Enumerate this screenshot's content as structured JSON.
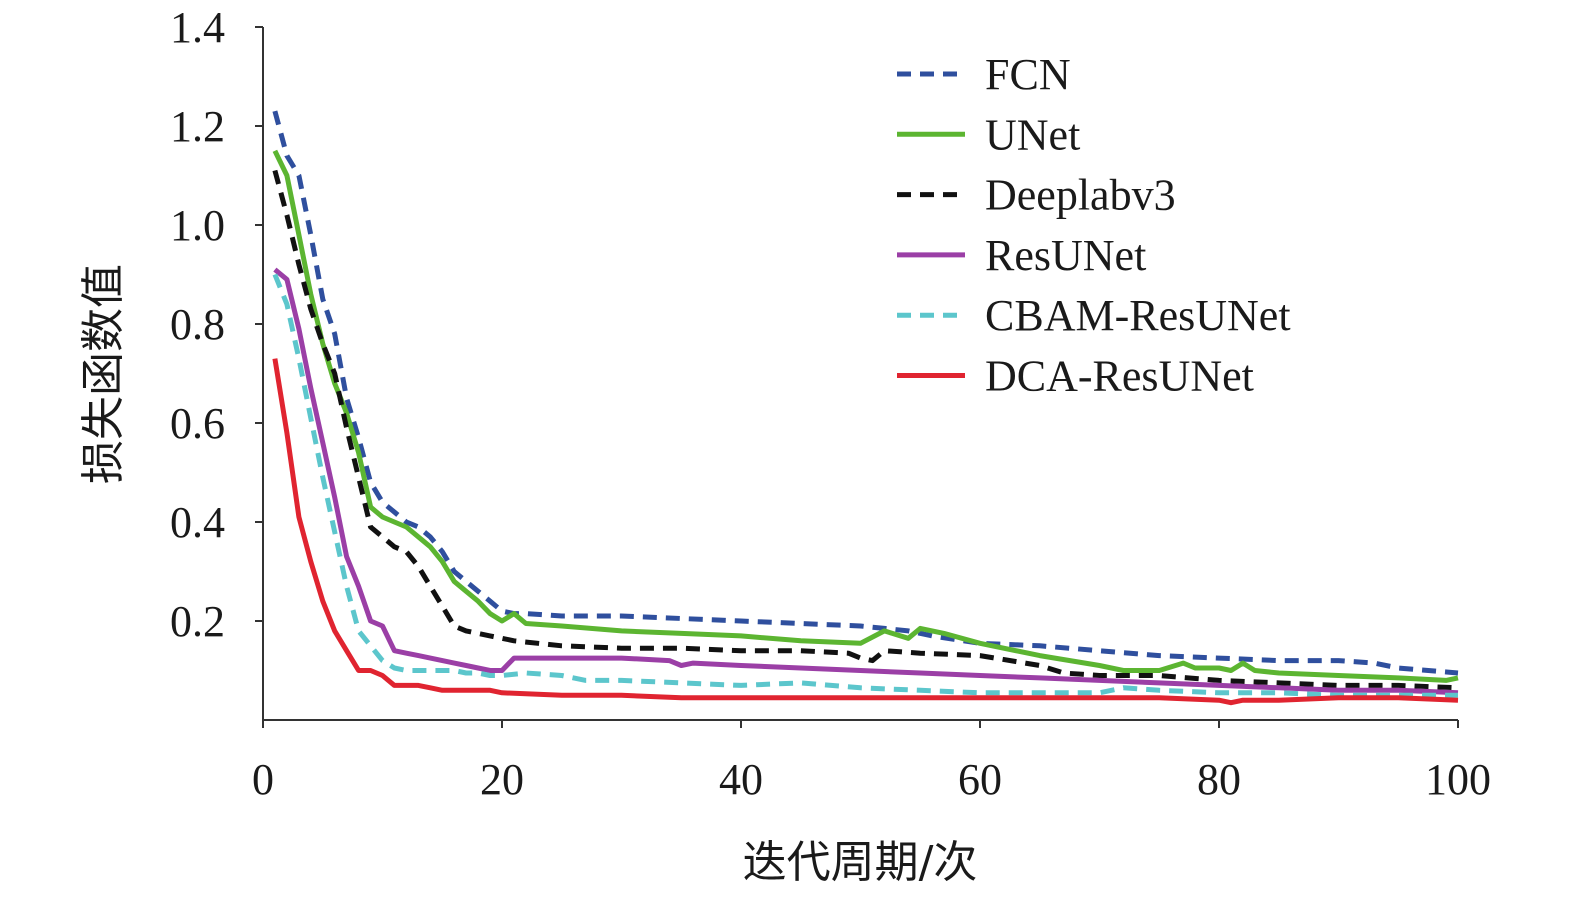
{
  "chart_data": {
    "type": "line",
    "title": "",
    "xlabel": "迭代周期/次",
    "ylabel": "损失函数值",
    "xlim": [
      0,
      100
    ],
    "ylim": [
      0,
      1.4
    ],
    "x_ticks": [
      "0",
      "20",
      "40",
      "60",
      "80",
      "100"
    ],
    "y_ticks": [
      "0.2",
      "0.4",
      "0.6",
      "0.8",
      "1.0",
      "1.2",
      "1.4"
    ],
    "grid": false,
    "legend_position": "top-right",
    "series": [
      {
        "name": "FCN",
        "color": "#2f4f9e",
        "dash": "dashed",
        "x": [
          1,
          2,
          3,
          4,
          5,
          6,
          7,
          8,
          9,
          10,
          11,
          12,
          13,
          14,
          15,
          16,
          17,
          18,
          19,
          20,
          21,
          22,
          25,
          30,
          35,
          40,
          45,
          50,
          52,
          54,
          56,
          60,
          65,
          70,
          75,
          80,
          85,
          90,
          93,
          95,
          100
        ],
        "y": [
          1.23,
          1.14,
          1.1,
          0.98,
          0.85,
          0.78,
          0.65,
          0.57,
          0.48,
          0.44,
          0.42,
          0.4,
          0.39,
          0.37,
          0.34,
          0.3,
          0.28,
          0.26,
          0.24,
          0.22,
          0.215,
          0.215,
          0.21,
          0.21,
          0.205,
          0.2,
          0.195,
          0.19,
          0.185,
          0.18,
          0.17,
          0.155,
          0.15,
          0.14,
          0.13,
          0.125,
          0.12,
          0.12,
          0.115,
          0.105,
          0.095
        ]
      },
      {
        "name": "UNet",
        "color": "#5cb531",
        "dash": "solid",
        "x": [
          1,
          2,
          3,
          4,
          5,
          6,
          7,
          8,
          9,
          10,
          11,
          12,
          13,
          14,
          15,
          16,
          17,
          18,
          19,
          20,
          21,
          22,
          25,
          30,
          35,
          40,
          45,
          50,
          52,
          54,
          55,
          57,
          60,
          65,
          70,
          72,
          75,
          77,
          78,
          80,
          81,
          82,
          83,
          85,
          90,
          95,
          99,
          100
        ],
        "y": [
          1.15,
          1.1,
          0.98,
          0.86,
          0.76,
          0.68,
          0.62,
          0.54,
          0.43,
          0.41,
          0.4,
          0.39,
          0.37,
          0.35,
          0.32,
          0.28,
          0.26,
          0.24,
          0.215,
          0.2,
          0.215,
          0.195,
          0.19,
          0.18,
          0.175,
          0.17,
          0.16,
          0.155,
          0.18,
          0.165,
          0.185,
          0.175,
          0.155,
          0.13,
          0.11,
          0.1,
          0.1,
          0.115,
          0.105,
          0.105,
          0.1,
          0.115,
          0.1,
          0.095,
          0.09,
          0.085,
          0.08,
          0.085
        ]
      },
      {
        "name": "Deeplabv3",
        "color": "#111111",
        "dash": "dashed",
        "x": [
          1,
          2,
          3,
          4,
          5,
          6,
          7,
          8,
          9,
          10,
          11,
          12,
          13,
          14,
          15,
          16,
          17,
          18,
          19,
          20,
          21,
          25,
          30,
          35,
          40,
          45,
          49,
          50,
          51,
          52,
          55,
          60,
          65,
          67,
          70,
          75,
          80,
          85,
          90,
          95,
          100
        ],
        "y": [
          1.11,
          1.02,
          0.92,
          0.83,
          0.76,
          0.7,
          0.59,
          0.49,
          0.39,
          0.37,
          0.35,
          0.34,
          0.31,
          0.27,
          0.23,
          0.19,
          0.18,
          0.175,
          0.17,
          0.165,
          0.16,
          0.15,
          0.145,
          0.145,
          0.14,
          0.14,
          0.135,
          0.125,
          0.12,
          0.14,
          0.135,
          0.13,
          0.11,
          0.095,
          0.09,
          0.09,
          0.08,
          0.075,
          0.07,
          0.07,
          0.065
        ]
      },
      {
        "name": "ResUNet",
        "color": "#9b3fa6",
        "dash": "solid",
        "x": [
          1,
          2,
          3,
          4,
          5,
          6,
          7,
          8,
          9,
          10,
          11,
          12,
          13,
          14,
          15,
          16,
          17,
          18,
          19,
          20,
          21,
          25,
          30,
          34,
          35,
          36,
          40,
          45,
          50,
          55,
          60,
          65,
          70,
          75,
          80,
          85,
          90,
          95,
          100
        ],
        "y": [
          0.91,
          0.89,
          0.79,
          0.67,
          0.56,
          0.45,
          0.33,
          0.27,
          0.2,
          0.19,
          0.14,
          0.135,
          0.13,
          0.125,
          0.12,
          0.115,
          0.11,
          0.105,
          0.1,
          0.1,
          0.125,
          0.125,
          0.125,
          0.12,
          0.11,
          0.115,
          0.11,
          0.105,
          0.1,
          0.095,
          0.09,
          0.085,
          0.08,
          0.075,
          0.07,
          0.065,
          0.06,
          0.06,
          0.055
        ]
      },
      {
        "name": "CBAM-ResUNet",
        "color": "#5cc6cc",
        "dash": "dashed",
        "x": [
          1,
          2,
          3,
          4,
          5,
          6,
          7,
          8,
          9,
          10,
          11,
          12,
          13,
          14,
          15,
          16,
          17,
          18,
          19,
          20,
          22,
          25,
          27,
          30,
          35,
          40,
          45,
          50,
          55,
          60,
          65,
          70,
          72,
          75,
          80,
          85,
          90,
          95,
          100
        ],
        "y": [
          0.9,
          0.84,
          0.73,
          0.61,
          0.49,
          0.38,
          0.27,
          0.18,
          0.15,
          0.12,
          0.105,
          0.1,
          0.1,
          0.1,
          0.1,
          0.1,
          0.095,
          0.095,
          0.09,
          0.09,
          0.095,
          0.09,
          0.08,
          0.08,
          0.075,
          0.07,
          0.075,
          0.065,
          0.06,
          0.055,
          0.055,
          0.055,
          0.065,
          0.06,
          0.055,
          0.055,
          0.05,
          0.05,
          0.05
        ]
      },
      {
        "name": "DCA-ResUNet",
        "color": "#e02430",
        "dash": "solid",
        "x": [
          1,
          2,
          3,
          4,
          5,
          6,
          7,
          8,
          9,
          10,
          11,
          12,
          13,
          14,
          15,
          16,
          17,
          18,
          19,
          20,
          25,
          30,
          35,
          40,
          45,
          50,
          55,
          60,
          65,
          70,
          75,
          80,
          81,
          82,
          85,
          90,
          95,
          100
        ],
        "y": [
          0.73,
          0.58,
          0.41,
          0.32,
          0.24,
          0.18,
          0.14,
          0.1,
          0.1,
          0.09,
          0.07,
          0.07,
          0.07,
          0.065,
          0.06,
          0.06,
          0.06,
          0.06,
          0.06,
          0.055,
          0.05,
          0.05,
          0.045,
          0.045,
          0.045,
          0.045,
          0.045,
          0.045,
          0.045,
          0.045,
          0.045,
          0.04,
          0.035,
          0.04,
          0.04,
          0.045,
          0.045,
          0.04
        ]
      }
    ]
  }
}
